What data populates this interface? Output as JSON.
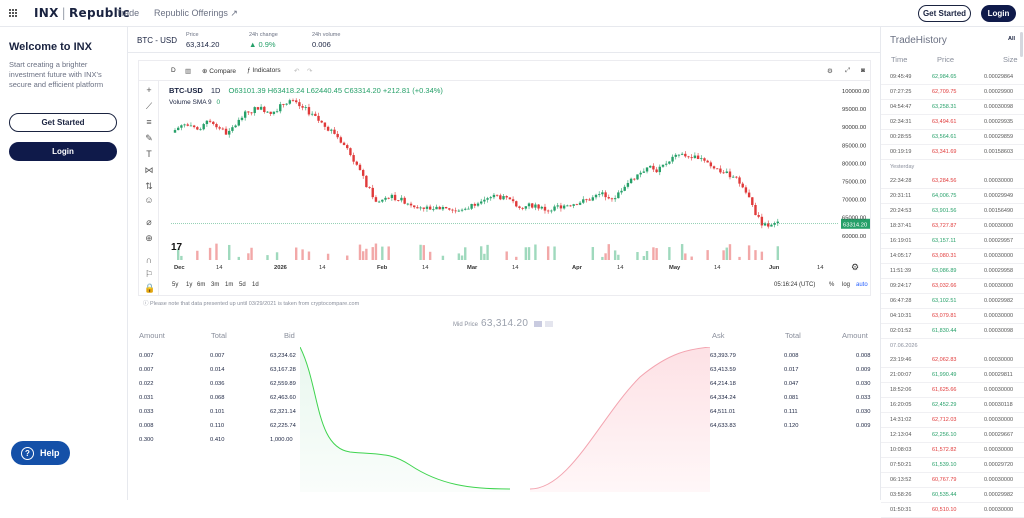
{
  "topbar": {
    "logo": "INX",
    "logo_sub": "Republic",
    "nav": [
      "Trade",
      "Republic Offerings ↗"
    ],
    "get_started": "Get Started",
    "login": "Login"
  },
  "left": {
    "title": "Welcome to INX",
    "subtitle": "Start creating a brighter investment future with INX's secure and efficient platform",
    "get_started": "Get Started",
    "login": "Login",
    "help": "Help"
  },
  "ticker": {
    "pair": "BTC - USD",
    "price_label": "Price",
    "price": "63,314.20",
    "change_label": "24h change",
    "change": "▲ 0.9%",
    "volume_label": "24h volume",
    "volume": "0.006"
  },
  "chart": {
    "toolbar": {
      "interval": "D",
      "compare": "Compare",
      "indicators": "Indicators"
    },
    "symbol": "BTC-USD",
    "timeframe": "1D",
    "ohlc": {
      "o": "O63101.39",
      "h": "H63418.24",
      "l": "L62440.45",
      "c": "C63314.20",
      "chg": "+212.81 (+0.34%)"
    },
    "volume_label": "Volume SMA 9",
    "volume_value": "0",
    "price_tag": "63314.20",
    "y_ticks": [
      "100000.00",
      "95000.00",
      "90000.00",
      "85000.00",
      "80000.00",
      "75000.00",
      "70000.00",
      "65000.00",
      "60000.00"
    ],
    "x_ticks": [
      "Dec",
      "14",
      "2026",
      "14",
      "Feb",
      "14",
      "Mar",
      "14",
      "Apr",
      "14",
      "May",
      "14",
      "Jun",
      "14"
    ],
    "ranges": [
      "5y",
      "1y",
      "6m",
      "3m",
      "1m",
      "5d",
      "1d"
    ],
    "clock": "05:16:24 (UTC)",
    "footer_controls": [
      "%",
      "log",
      "auto"
    ]
  },
  "notice": "Please note that data presented up until 03/29/2021 is taken from cryptocompare.com",
  "orderbook": {
    "mid_label": "Mid Price",
    "mid_price": "63,314.20",
    "bid_headers": [
      "Amount",
      "Total",
      "Bid"
    ],
    "ask_headers": [
      "Ask",
      "Total",
      "Amount"
    ],
    "bids": [
      [
        "0.007",
        "0.007",
        "63,234.62"
      ],
      [
        "0.007",
        "0.014",
        "63,167.28"
      ],
      [
        "0.022",
        "0.036",
        "62,559.89"
      ],
      [
        "0.031",
        "0.068",
        "62,463.60"
      ],
      [
        "0.033",
        "0.101",
        "62,321.14"
      ],
      [
        "0.008",
        "0.110",
        "62,225.74"
      ],
      [
        "0.300",
        "0.410",
        "1,000.00"
      ]
    ],
    "asks": [
      [
        "63,393.79",
        "0.008",
        "0.008"
      ],
      [
        "63,413.59",
        "0.017",
        "0.009"
      ],
      [
        "64,214.18",
        "0.047",
        "0.030"
      ],
      [
        "64,334.24",
        "0.081",
        "0.033"
      ],
      [
        "64,511.01",
        "0.111",
        "0.030"
      ],
      [
        "64,633.83",
        "0.120",
        "0.009"
      ]
    ]
  },
  "trade_history": {
    "title": "TradeHistory",
    "filter": "All",
    "headers": [
      "Time",
      "Price",
      "Size"
    ],
    "groups": [
      {
        "label": "",
        "rows": [
          [
            "09:45:49",
            "62,984.65",
            "0.00029864",
            "g"
          ],
          [
            "07:27:25",
            "62,709.75",
            "0.00029900",
            "r"
          ],
          [
            "04:54:47",
            "63,258.31",
            "0.00030098",
            "g"
          ],
          [
            "02:34:31",
            "63,494.61",
            "0.00029935",
            "r"
          ],
          [
            "00:28:55",
            "63,564.61",
            "0.00029859",
            "g"
          ],
          [
            "00:19:19",
            "63,341.69",
            "0.00158603",
            "r"
          ]
        ]
      },
      {
        "label": "Yesterday",
        "rows": [
          [
            "22:34:28",
            "63,284.56",
            "0.00030000",
            "r"
          ],
          [
            "20:31:11",
            "64,006.75",
            "0.00029949",
            "g"
          ],
          [
            "20:24:53",
            "63,901.56",
            "0.00156490",
            "g"
          ],
          [
            "18:37:41",
            "63,727.87",
            "0.00030000",
            "r"
          ],
          [
            "16:19:01",
            "63,157.11",
            "0.00029957",
            "g"
          ],
          [
            "14:05:17",
            "63,080.31",
            "0.00030000",
            "r"
          ],
          [
            "11:51:39",
            "63,086.89",
            "0.00029958",
            "g"
          ],
          [
            "09:24:17",
            "63,032.66",
            "0.00030000",
            "r"
          ],
          [
            "06:47:28",
            "63,102.51",
            "0.00029982",
            "g"
          ],
          [
            "04:10:31",
            "63,079.81",
            "0.00030000",
            "r"
          ],
          [
            "02:01:52",
            "61,830.44",
            "0.00030098",
            "g"
          ]
        ]
      },
      {
        "label": "07.06.2026",
        "rows": [
          [
            "23:19:46",
            "62,062.83",
            "0.00030000",
            "r"
          ],
          [
            "21:00:07",
            "61,990.49",
            "0.00029811",
            "g"
          ],
          [
            "18:52:06",
            "61,625.66",
            "0.00030000",
            "r"
          ],
          [
            "16:20:05",
            "62,452.29",
            "0.00030118",
            "g"
          ],
          [
            "14:31:02",
            "62,712.03",
            "0.00030000",
            "r"
          ],
          [
            "12:13:04",
            "62,256.10",
            "0.00029667",
            "g"
          ],
          [
            "10:08:03",
            "61,572.82",
            "0.00030000",
            "r"
          ],
          [
            "07:50:21",
            "61,539.10",
            "0.00029720",
            "g"
          ],
          [
            "06:13:52",
            "60,767.79",
            "0.00030000",
            "r"
          ],
          [
            "03:58:26",
            "60,535.44",
            "0.00029982",
            "g"
          ],
          [
            "01:50:31",
            "60,510.10",
            "0.00030000",
            "r"
          ]
        ]
      }
    ]
  },
  "colors": {
    "green": "#26a069",
    "red": "#e03a3a",
    "navy": "#0f1a4a",
    "help_blue": "#1450a8"
  }
}
